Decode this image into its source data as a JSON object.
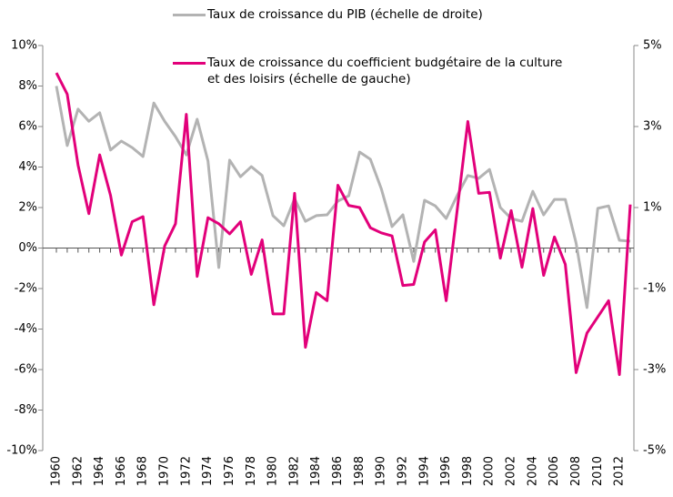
{
  "chart_data": {
    "type": "line",
    "x": [
      1960,
      1961,
      1962,
      1963,
      1964,
      1965,
      1966,
      1967,
      1968,
      1969,
      1970,
      1971,
      1972,
      1973,
      1974,
      1975,
      1976,
      1977,
      1978,
      1979,
      1980,
      1981,
      1982,
      1983,
      1984,
      1985,
      1986,
      1987,
      1988,
      1989,
      1990,
      1991,
      1992,
      1993,
      1994,
      1995,
      1996,
      1997,
      1998,
      1999,
      2000,
      2001,
      2002,
      2003,
      2004,
      2005,
      2006,
      2007,
      2008,
      2009,
      2010,
      2011,
      2012,
      2013
    ],
    "xlim": [
      1960,
      2013
    ],
    "xticks": [
      1960,
      1962,
      1964,
      1966,
      1968,
      1970,
      1972,
      1974,
      1976,
      1978,
      1980,
      1982,
      1984,
      1986,
      1988,
      1990,
      1992,
      1994,
      1996,
      1998,
      2000,
      2002,
      2004,
      2006,
      2008,
      2010,
      2012
    ],
    "ylim": [
      -10,
      10
    ],
    "yticks": [
      {
        "value": -10,
        "label": "-10%"
      },
      {
        "value": -8,
        "label": "-8%"
      },
      {
        "value": -6,
        "label": "-6%"
      },
      {
        "value": -4,
        "label": "-4%"
      },
      {
        "value": -2,
        "label": "-2%"
      },
      {
        "value": 0,
        "label": "0%"
      },
      {
        "value": 2,
        "label": "2%"
      },
      {
        "value": 4,
        "label": "4%"
      },
      {
        "value": 6,
        "label": "6%"
      },
      {
        "value": 8,
        "label": "8%"
      },
      {
        "value": 10,
        "label": "10%"
      }
    ],
    "y2lim": [
      -5,
      5
    ],
    "y2ticks": [
      {
        "value": -5,
        "label": "-5%"
      },
      {
        "value": -3,
        "label": "-3%"
      },
      {
        "value": -1,
        "label": "-1%"
      },
      {
        "value": 1,
        "label": "1%"
      },
      {
        "value": 3,
        "label": "3%"
      },
      {
        "value": 5,
        "label": "5%"
      }
    ],
    "series": [
      {
        "name": "Taux de croissance du PIB (échelle de droite)",
        "color": "#b3b3b3",
        "axis": "y2",
        "values": [
          4.0,
          2.53,
          3.43,
          3.13,
          3.34,
          2.42,
          2.64,
          2.48,
          2.26,
          3.58,
          3.13,
          2.75,
          2.3,
          3.18,
          2.15,
          -0.48,
          2.17,
          1.76,
          2.01,
          1.79,
          0.8,
          0.55,
          1.22,
          0.66,
          0.8,
          0.82,
          1.16,
          1.29,
          2.37,
          2.19,
          1.47,
          0.53,
          0.82,
          -0.33,
          1.18,
          1.04,
          0.73,
          1.29,
          1.79,
          1.72,
          1.94,
          1.0,
          0.73,
          0.66,
          1.4,
          0.82,
          1.2,
          1.2,
          0.12,
          -1.47,
          0.98,
          1.04,
          0.19,
          0.17
        ]
      },
      {
        "name": "Taux de croissance du coefficient budgétaire de la culture et des loisirs (échelle de gauche)",
        "color": "#e2007a",
        "values": [
          8.65,
          7.6,
          4.1,
          1.7,
          4.6,
          2.6,
          -0.35,
          1.3,
          1.55,
          -2.8,
          0.1,
          1.2,
          6.6,
          -1.4,
          1.5,
          1.2,
          0.7,
          1.3,
          -1.3,
          0.4,
          -3.25,
          -3.25,
          2.7,
          -4.9,
          -2.2,
          -2.6,
          3.1,
          2.1,
          2.0,
          1.0,
          0.75,
          0.6,
          -1.85,
          -1.8,
          0.3,
          0.9,
          -2.6,
          1.8,
          6.25,
          2.7,
          2.75,
          -0.5,
          1.85,
          -0.95,
          1.95,
          -1.35,
          0.55,
          -0.8,
          -6.15,
          -4.2,
          -3.4,
          -2.6,
          -6.25,
          2.15
        ]
      }
    ]
  }
}
